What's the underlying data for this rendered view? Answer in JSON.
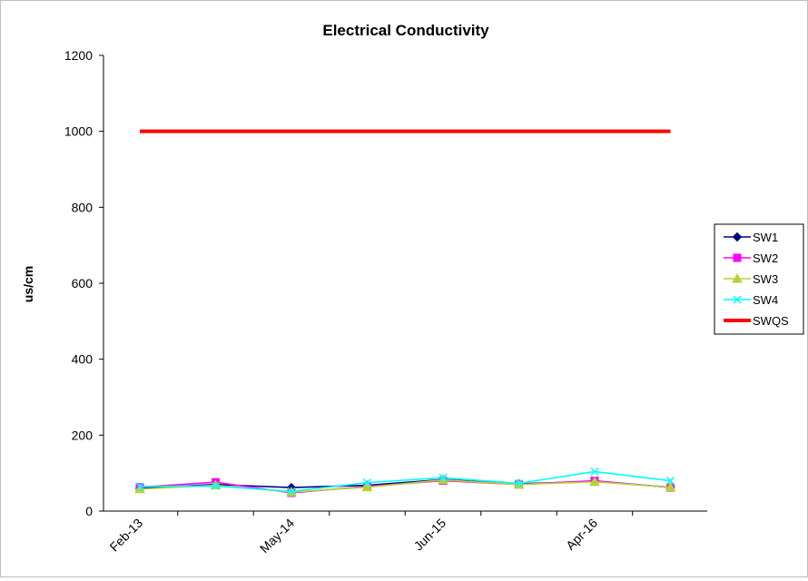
{
  "chart_data": {
    "type": "line",
    "title": "Electrical  Conductivity",
    "xlabel": "",
    "ylabel": "us/cm",
    "ylim": [
      0,
      1200
    ],
    "yticks": [
      0,
      200,
      400,
      600,
      800,
      1000,
      1200
    ],
    "x_tick_labels": [
      "Feb-13",
      "May-14",
      "Jun-15",
      "Apr-16"
    ],
    "x_tick_indices": [
      0,
      2,
      4,
      6
    ],
    "n_points": 8,
    "grid": false,
    "legend_position": "right",
    "series": [
      {
        "name": "SW1",
        "color": "#000080",
        "marker": "diamond",
        "values": [
          60,
          70,
          62,
          68,
          83,
          72,
          78,
          63
        ]
      },
      {
        "name": "SW2",
        "color": "#ff00ff",
        "marker": "square",
        "values": [
          63,
          76,
          48,
          65,
          80,
          70,
          80,
          62
        ]
      },
      {
        "name": "SW3",
        "color": "#b5d334",
        "marker": "triangle",
        "values": [
          58,
          68,
          50,
          63,
          82,
          70,
          77,
          63
        ]
      },
      {
        "name": "SW4",
        "color": "#00ffff",
        "marker": "x",
        "values": [
          65,
          66,
          52,
          75,
          88,
          73,
          104,
          80
        ]
      },
      {
        "name": "SWQS",
        "color": "#ff0000",
        "marker": "none",
        "values": [
          1000,
          1000,
          1000,
          1000,
          1000,
          1000,
          1000,
          1000
        ]
      }
    ]
  }
}
